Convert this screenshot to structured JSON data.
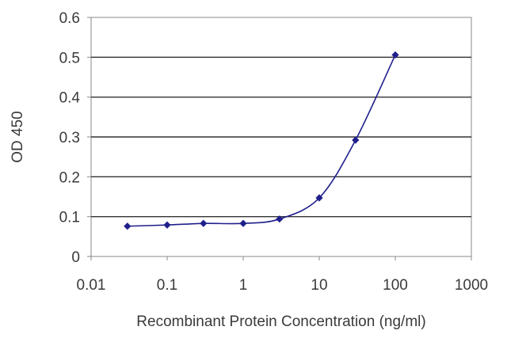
{
  "chart_data": {
    "type": "line",
    "xscale": "log",
    "xlabel": "Recombinant Protein Concentration (ng/ml)",
    "ylabel": "OD 450",
    "xlim": [
      0.01,
      1000
    ],
    "ylim": [
      0,
      0.6
    ],
    "xticks": [
      0.01,
      0.1,
      1,
      10,
      100,
      1000
    ],
    "xtick_labels": [
      "0.01",
      "0.1",
      "1",
      "10",
      "100",
      "1000"
    ],
    "yticks": [
      0,
      0.1,
      0.2,
      0.3,
      0.4,
      0.5,
      0.6
    ],
    "ytick_labels": [
      "0",
      "0.1",
      "0.2",
      "0.3",
      "0.4",
      "0.5",
      "0.6"
    ],
    "grid": "horizontal",
    "series": [
      {
        "x": [
          0.03,
          0.1,
          0.3,
          1,
          3,
          10,
          30,
          100
        ],
        "y": [
          0.076,
          0.079,
          0.083,
          0.083,
          0.094,
          0.147,
          0.292,
          0.506
        ]
      }
    ],
    "colors": {
      "series": "#1f1f8c",
      "grid": "#333333",
      "frame": "#8a8a8a",
      "text": "#3a3a3a"
    }
  }
}
